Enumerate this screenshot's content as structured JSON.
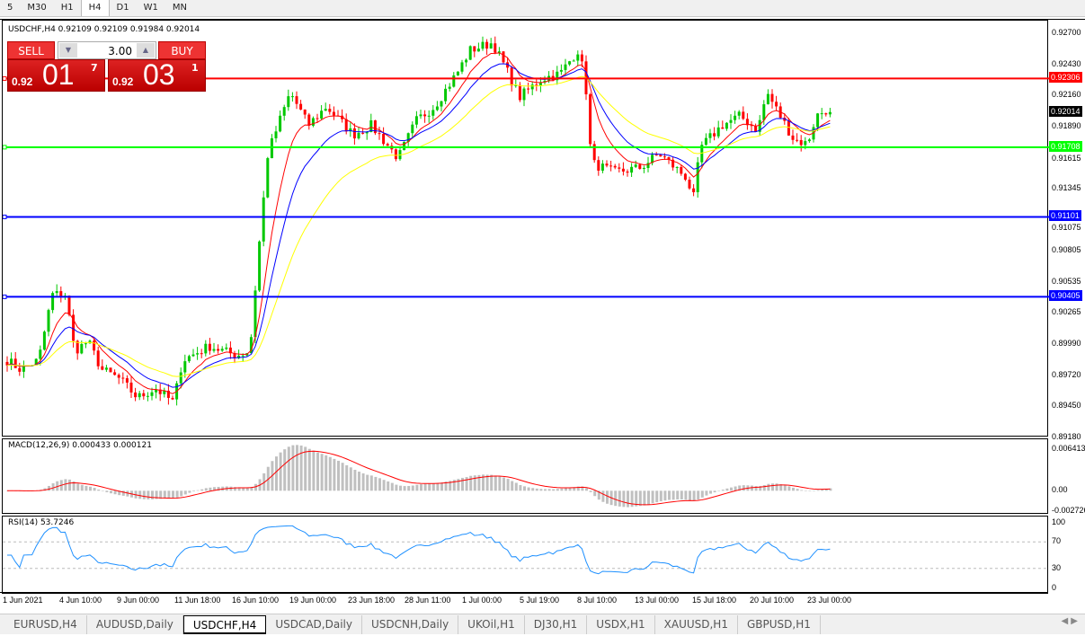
{
  "timeframes": [
    "5",
    "M30",
    "H1",
    "H4",
    "D1",
    "W1",
    "MN"
  ],
  "active_timeframe": "H4",
  "chart": {
    "title": "USDCHF,H4  0.92109 0.92109 0.91984 0.92014"
  },
  "trade": {
    "sell_label": "SELL",
    "buy_label": "BUY",
    "lot": "3.00",
    "sell_small": "0.92",
    "sell_big": "01",
    "sell_exp": "7",
    "buy_small": "0.92",
    "buy_big": "03",
    "buy_exp": "1"
  },
  "price_axis": [
    "0.92700",
    "0.92430",
    "0.92160",
    "0.91890",
    "0.91615",
    "0.91345",
    "0.91075",
    "0.90805",
    "0.90535",
    "0.90265",
    "0.89990",
    "0.89720",
    "0.89450",
    "0.89180"
  ],
  "hlines": [
    {
      "price": 0.92306,
      "label": "0.92306",
      "color": "#ff0000"
    },
    {
      "price": 0.91708,
      "label": "0.91708",
      "color": "#00ff00"
    },
    {
      "price": 0.91101,
      "label": "0.91101",
      "color": "#0000ff"
    },
    {
      "price": 0.90405,
      "label": "0.90405",
      "color": "#0000ff"
    }
  ],
  "current_price": {
    "price": 0.92014,
    "label": "0.92014"
  },
  "colors": {
    "bull": "#00c800",
    "bear": "#ff0000",
    "ma_fast": "#ff0000",
    "ma_mid": "#0000ff",
    "ma_slow": "#ffff00",
    "macd_hist": "#c0c0c0",
    "rsi": "#1e90ff"
  },
  "chart_data": {
    "type": "candlestick",
    "ylim": [
      0.8918,
      0.9281
    ],
    "close_path": [
      [
        0,
        0.89853
      ],
      [
        15,
        0.89772
      ],
      [
        35,
        0.89853
      ],
      [
        50,
        0.90426
      ],
      [
        65,
        0.90426
      ],
      [
        75,
        0.89935
      ],
      [
        90,
        0.90017
      ],
      [
        105,
        0.89772
      ],
      [
        125,
        0.8969
      ],
      [
        145,
        0.89526
      ],
      [
        165,
        0.89608
      ],
      [
        185,
        0.89485
      ],
      [
        195,
        0.89853
      ],
      [
        225,
        0.89976
      ],
      [
        255,
        0.89894
      ],
      [
        270,
        0.89935
      ],
      [
        280,
        0.90835
      ],
      [
        290,
        0.91653
      ],
      [
        305,
        0.9198
      ],
      [
        315,
        0.92185
      ],
      [
        335,
        0.91898
      ],
      [
        355,
        0.92062
      ],
      [
        385,
        0.91817
      ],
      [
        405,
        0.91898
      ],
      [
        435,
        0.91612
      ],
      [
        455,
        0.91939
      ],
      [
        475,
        0.92062
      ],
      [
        500,
        0.92348
      ],
      [
        515,
        0.92553
      ],
      [
        540,
        0.92618
      ],
      [
        555,
        0.92389
      ],
      [
        570,
        0.92144
      ],
      [
        595,
        0.92307
      ],
      [
        615,
        0.92348
      ],
      [
        635,
        0.92553
      ],
      [
        643,
        0.92307
      ],
      [
        650,
        0.91571
      ],
      [
        675,
        0.91489
      ],
      [
        705,
        0.9153
      ],
      [
        725,
        0.91653
      ],
      [
        755,
        0.91448
      ],
      [
        765,
        0.91244
      ],
      [
        770,
        0.91694
      ],
      [
        795,
        0.91898
      ],
      [
        815,
        0.9198
      ],
      [
        835,
        0.91857
      ],
      [
        845,
        0.92185
      ],
      [
        860,
        0.9198
      ],
      [
        875,
        0.91776
      ],
      [
        890,
        0.91735
      ],
      [
        900,
        0.9198
      ],
      [
        917,
        0.92062
      ]
    ]
  },
  "macd": {
    "label": "MACD(12,26,9) 0.000433 0.000121",
    "axis": [
      "0.006413",
      "0.00",
      "-0.002726"
    ]
  },
  "rsi": {
    "label": "RSI(14) 53.7246",
    "axis": [
      "100",
      "70",
      "30",
      "0"
    ]
  },
  "time_axis": [
    "1 Jun 2021",
    "4 Jun 10:00",
    "9 Jun 00:00",
    "11 Jun 18:00",
    "16 Jun 10:00",
    "19 Jun 00:00",
    "23 Jun 18:00",
    "28 Jun 11:00",
    "1 Jul 00:00",
    "5 Jul 19:00",
    "8 Jul 10:00",
    "13 Jul 00:00",
    "15 Jul 18:00",
    "20 Jul 10:00",
    "23 Jul 00:00"
  ],
  "tabs": [
    "EURUSD,H4",
    "AUDUSD,Daily",
    "USDCHF,H4",
    "USDCAD,Daily",
    "USDCNH,Daily",
    "UKOil,H1",
    "DJ30,H1",
    "USDX,H1",
    "XAUUSD,H1",
    "GBPUSD,H1"
  ],
  "active_tab": "USDCHF,H4"
}
